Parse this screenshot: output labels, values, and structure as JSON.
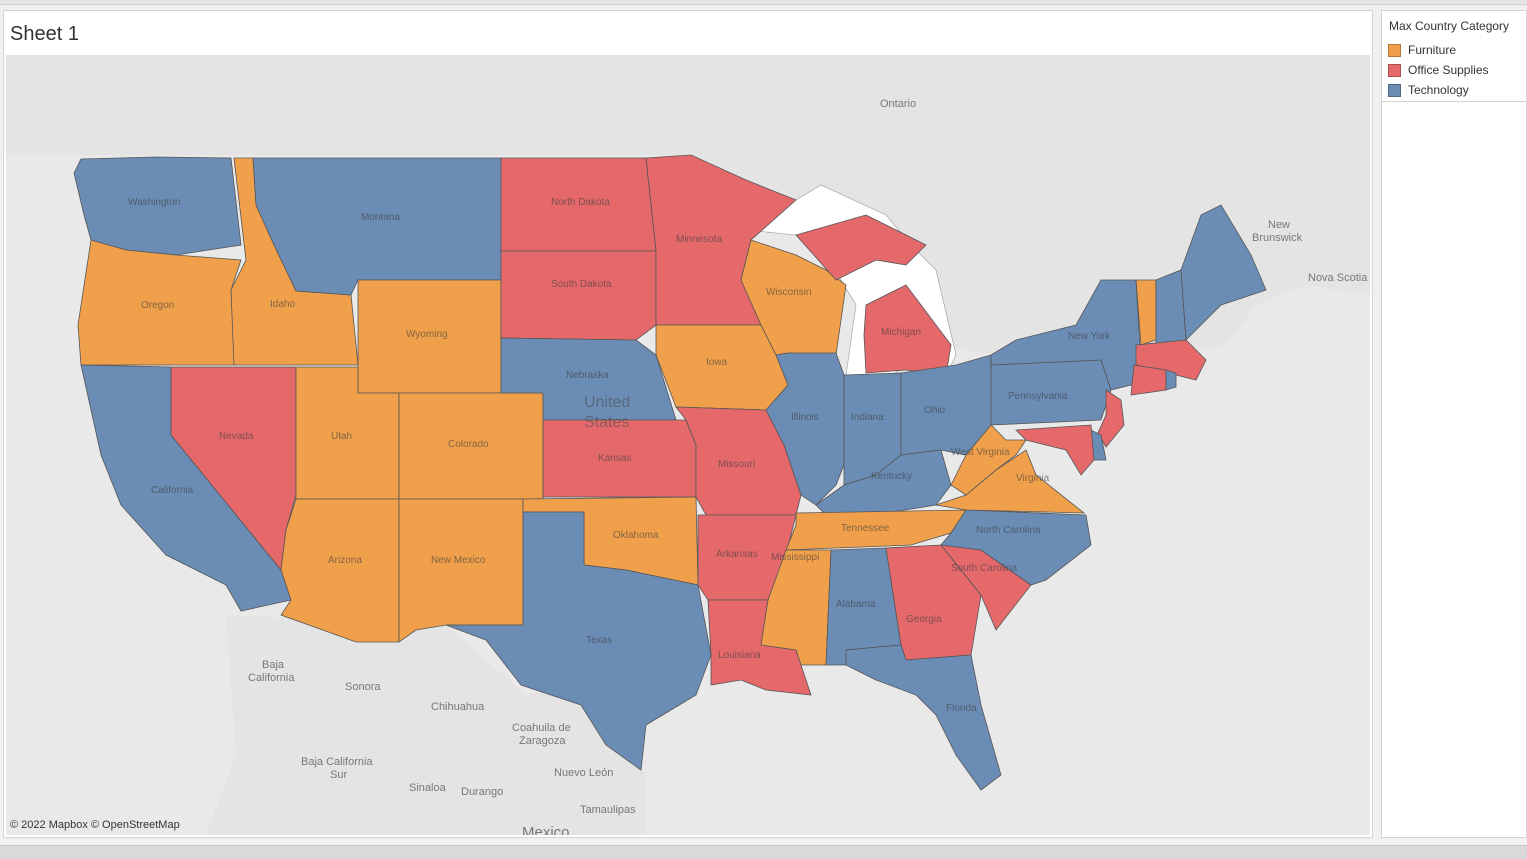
{
  "sheet": {
    "title": "Sheet 1"
  },
  "legend": {
    "title": "Max Country Category",
    "items": [
      {
        "label": "Furniture",
        "color": "#f0a04b"
      },
      {
        "label": "Office Supplies",
        "color": "#e5696b"
      },
      {
        "label": "Technology",
        "color": "#6b8db5"
      }
    ]
  },
  "map": {
    "attribution": "© 2022 Mapbox © OpenStreetMap",
    "country_label": [
      "United",
      "States"
    ],
    "basemap_labels": [
      "Ontario",
      "New",
      "Brunswick",
      "Nova Scotia",
      "Baja",
      "California",
      "Sonora",
      "Chihuahua",
      "Coahuila de",
      "Zaragoza",
      "Baja California",
      "Sur",
      "Sinaloa",
      "Durango",
      "Nuevo León",
      "Tamaulipas",
      "Mexico"
    ],
    "states": [
      {
        "name": "Washington",
        "category": "Technology"
      },
      {
        "name": "Oregon",
        "category": "Furniture"
      },
      {
        "name": "California",
        "category": "Technology"
      },
      {
        "name": "Nevada",
        "category": "Office Supplies"
      },
      {
        "name": "Idaho",
        "category": "Furniture"
      },
      {
        "name": "Montana",
        "category": "Technology"
      },
      {
        "name": "Wyoming",
        "category": "Furniture"
      },
      {
        "name": "Utah",
        "category": "Furniture"
      },
      {
        "name": "Colorado",
        "category": "Furniture"
      },
      {
        "name": "Arizona",
        "category": "Furniture"
      },
      {
        "name": "New Mexico",
        "category": "Furniture"
      },
      {
        "name": "North Dakota",
        "category": "Office Supplies"
      },
      {
        "name": "South Dakota",
        "category": "Office Supplies"
      },
      {
        "name": "Nebraska",
        "category": "Technology"
      },
      {
        "name": "Kansas",
        "category": "Office Supplies"
      },
      {
        "name": "Oklahoma",
        "category": "Furniture"
      },
      {
        "name": "Texas",
        "category": "Technology"
      },
      {
        "name": "Minnesota",
        "category": "Office Supplies"
      },
      {
        "name": "Iowa",
        "category": "Furniture"
      },
      {
        "name": "Missouri",
        "category": "Office Supplies"
      },
      {
        "name": "Arkansas",
        "category": "Office Supplies"
      },
      {
        "name": "Louisiana",
        "category": "Office Supplies"
      },
      {
        "name": "Wisconsin",
        "category": "Furniture"
      },
      {
        "name": "Illinois",
        "category": "Technology"
      },
      {
        "name": "Michigan",
        "category": "Office Supplies"
      },
      {
        "name": "Indiana",
        "category": "Technology"
      },
      {
        "name": "Ohio",
        "category": "Technology"
      },
      {
        "name": "Kentucky",
        "category": "Technology"
      },
      {
        "name": "Tennessee",
        "category": "Furniture"
      },
      {
        "name": "Mississippi",
        "category": "Furniture"
      },
      {
        "name": "Alabama",
        "category": "Technology"
      },
      {
        "name": "Georgia",
        "category": "Office Supplies"
      },
      {
        "name": "Florida",
        "category": "Technology"
      },
      {
        "name": "South Carolina",
        "category": "Office Supplies"
      },
      {
        "name": "North Carolina",
        "category": "Technology"
      },
      {
        "name": "Virginia",
        "category": "Furniture"
      },
      {
        "name": "West Virginia",
        "category": "Furniture"
      },
      {
        "name": "Pennsylvania",
        "category": "Technology"
      },
      {
        "name": "New York",
        "category": "Technology"
      },
      {
        "name": "Vermont",
        "category": "Furniture"
      },
      {
        "name": "New Hampshire",
        "category": "Technology"
      },
      {
        "name": "Maine",
        "category": "Technology"
      },
      {
        "name": "Massachusetts",
        "category": "Office Supplies"
      },
      {
        "name": "Rhode Island",
        "category": "Technology"
      },
      {
        "name": "Connecticut",
        "category": "Office Supplies"
      },
      {
        "name": "New Jersey",
        "category": "Office Supplies"
      },
      {
        "name": "Delaware",
        "category": "Technology"
      },
      {
        "name": "Maryland",
        "category": "Office Supplies"
      }
    ]
  }
}
